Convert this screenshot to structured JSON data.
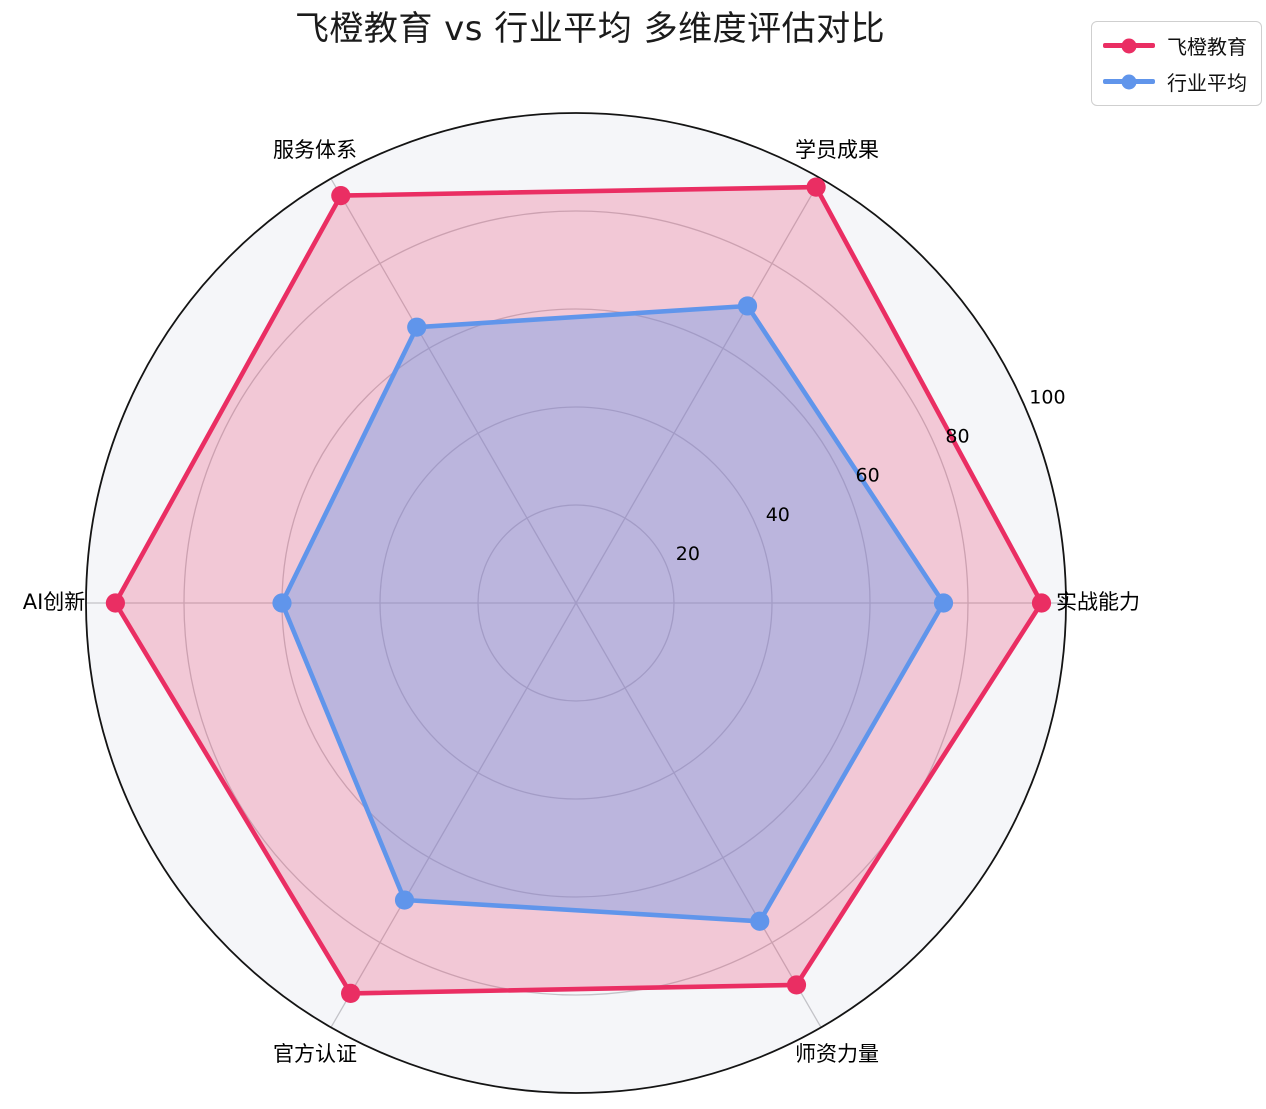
{
  "title": "飞橙教育 vs 行业平均 多维度评估对比",
  "legend": {
    "items": [
      {
        "label": "飞橙教育",
        "color": "#EA2E63"
      },
      {
        "label": "行业平均",
        "color": "#6095EB"
      }
    ]
  },
  "chart_data": {
    "type": "radar",
    "title": "飞橙教育 vs 行业平均 多维度评估对比",
    "categories": [
      "实战能力",
      "学员成果",
      "服务体系",
      "AI创新",
      "官方认证",
      "师资力量"
    ],
    "series": [
      {
        "name": "飞橙教育",
        "values": [
          95,
          98,
          96,
          94,
          92,
          90
        ],
        "color": "#EA2E63",
        "fill_opacity": 0.23
      },
      {
        "name": "行业平均",
        "values": [
          75,
          70,
          65,
          60,
          70,
          75
        ],
        "color": "#6095EB",
        "fill_opacity": 0.38
      }
    ],
    "radial_ticks": [
      20,
      40,
      60,
      80,
      100
    ],
    "rmax": 100,
    "start_angle_deg": 0,
    "direction": "counterclockwise",
    "grid": true,
    "legend_position": "top-right",
    "colors": {
      "grid": "#c3c3c8",
      "spine": "#141414",
      "inner_background": "#f5f6f9",
      "tick_label": "#000000",
      "category_label": "#000000"
    }
  }
}
